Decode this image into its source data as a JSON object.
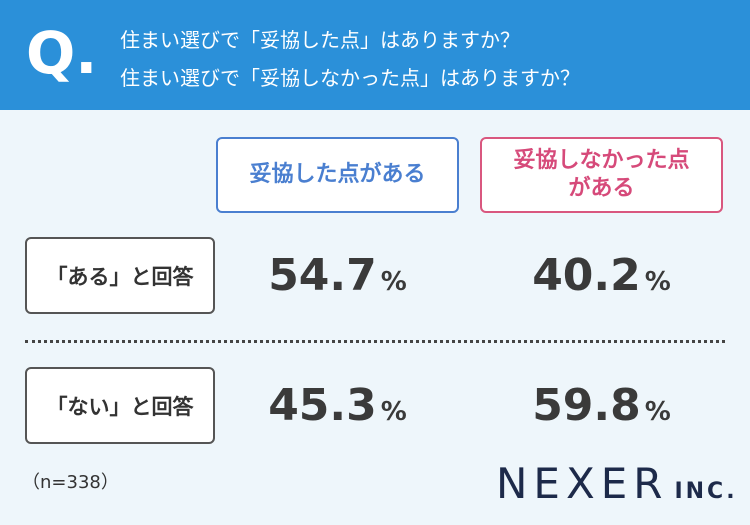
{
  "header": {
    "q_mark": "Q.",
    "lines": [
      "住まい選びで「妥協した点」はありますか？",
      "住まい選びで「妥協しなかった点」はありますか？"
    ]
  },
  "table": {
    "columns": [
      [
        "妥協した点がある"
      ],
      [
        "妥協しなかった点",
        "がある"
      ]
    ],
    "rows": [
      {
        "label": "「ある」と回答",
        "cells": [
          {
            "value": "54.7",
            "unit": "%"
          },
          {
            "value": "40.2",
            "unit": "%"
          }
        ]
      },
      {
        "label": "「ない」と回答",
        "cells": [
          {
            "value": "45.3",
            "unit": "%"
          },
          {
            "value": "59.8",
            "unit": "%"
          }
        ]
      }
    ]
  },
  "footer": {
    "sample": "（n=338）",
    "brand": "NEXER",
    "brand_suffix": "INC."
  }
}
